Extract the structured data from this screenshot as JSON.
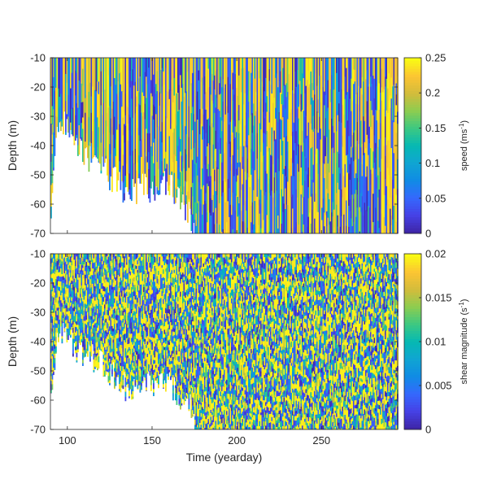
{
  "chart_data": [
    {
      "type": "heatmap",
      "panel": "top",
      "xlabel": "",
      "ylabel": "Depth (m)",
      "xlim": [
        90,
        295
      ],
      "ylim": [
        -70,
        -10
      ],
      "yticks": [
        -10,
        -20,
        -30,
        -40,
        -50,
        -60,
        -70
      ],
      "xticks": [
        100,
        150,
        200,
        250
      ],
      "colorbar": {
        "label": "speed (ms",
        "label_sup": "-1",
        "label_end": ")",
        "clim": [
          0,
          0.25
        ],
        "ticks": [
          0,
          0.05,
          0.1,
          0.15,
          0.2,
          0.25
        ],
        "ticklabels": [
          "0",
          "0.05",
          "0.1",
          "0.15",
          "0.2",
          "0.25"
        ]
      },
      "colormap": "parula",
      "data_bottom_depth_by_day": [
        [
          90,
          -60
        ],
        [
          93,
          -35
        ],
        [
          98,
          -32
        ],
        [
          105,
          -40
        ],
        [
          115,
          -46
        ],
        [
          120,
          -48
        ],
        [
          128,
          -52
        ],
        [
          135,
          -56
        ],
        [
          140,
          -56
        ],
        [
          145,
          -53
        ],
        [
          150,
          -56
        ],
        [
          158,
          -52
        ],
        [
          162,
          -55
        ],
        [
          168,
          -60
        ],
        [
          172,
          -62
        ],
        [
          175,
          -70
        ],
        [
          295,
          -70
        ]
      ]
    },
    {
      "type": "heatmap",
      "panel": "bottom",
      "xlabel": "Time (yearday)",
      "ylabel": "Depth (m)",
      "xlim": [
        90,
        295
      ],
      "ylim": [
        -70,
        -10
      ],
      "yticks": [
        -10,
        -20,
        -30,
        -40,
        -50,
        -60,
        -70
      ],
      "xticks": [
        100,
        150,
        200,
        250
      ],
      "colorbar": {
        "label": "shear magnitude (s",
        "label_sup": "-1",
        "label_end": ")",
        "clim": [
          0,
          0.02
        ],
        "ticks": [
          0,
          0.005,
          0.01,
          0.015,
          0.02
        ],
        "ticklabels": [
          "0",
          "0.005",
          "0.01",
          "0.015",
          "0.02"
        ]
      },
      "colormap": "parula",
      "data_bottom_depth_by_day": [
        [
          90,
          -58
        ],
        [
          93,
          -40
        ],
        [
          98,
          -36
        ],
        [
          105,
          -42
        ],
        [
          115,
          -46
        ],
        [
          120,
          -48
        ],
        [
          128,
          -52
        ],
        [
          135,
          -56
        ],
        [
          140,
          -56
        ],
        [
          145,
          -53
        ],
        [
          150,
          -56
        ],
        [
          158,
          -54
        ],
        [
          162,
          -55
        ],
        [
          168,
          -60
        ],
        [
          172,
          -62
        ],
        [
          175,
          -70
        ],
        [
          295,
          -70
        ]
      ]
    }
  ]
}
